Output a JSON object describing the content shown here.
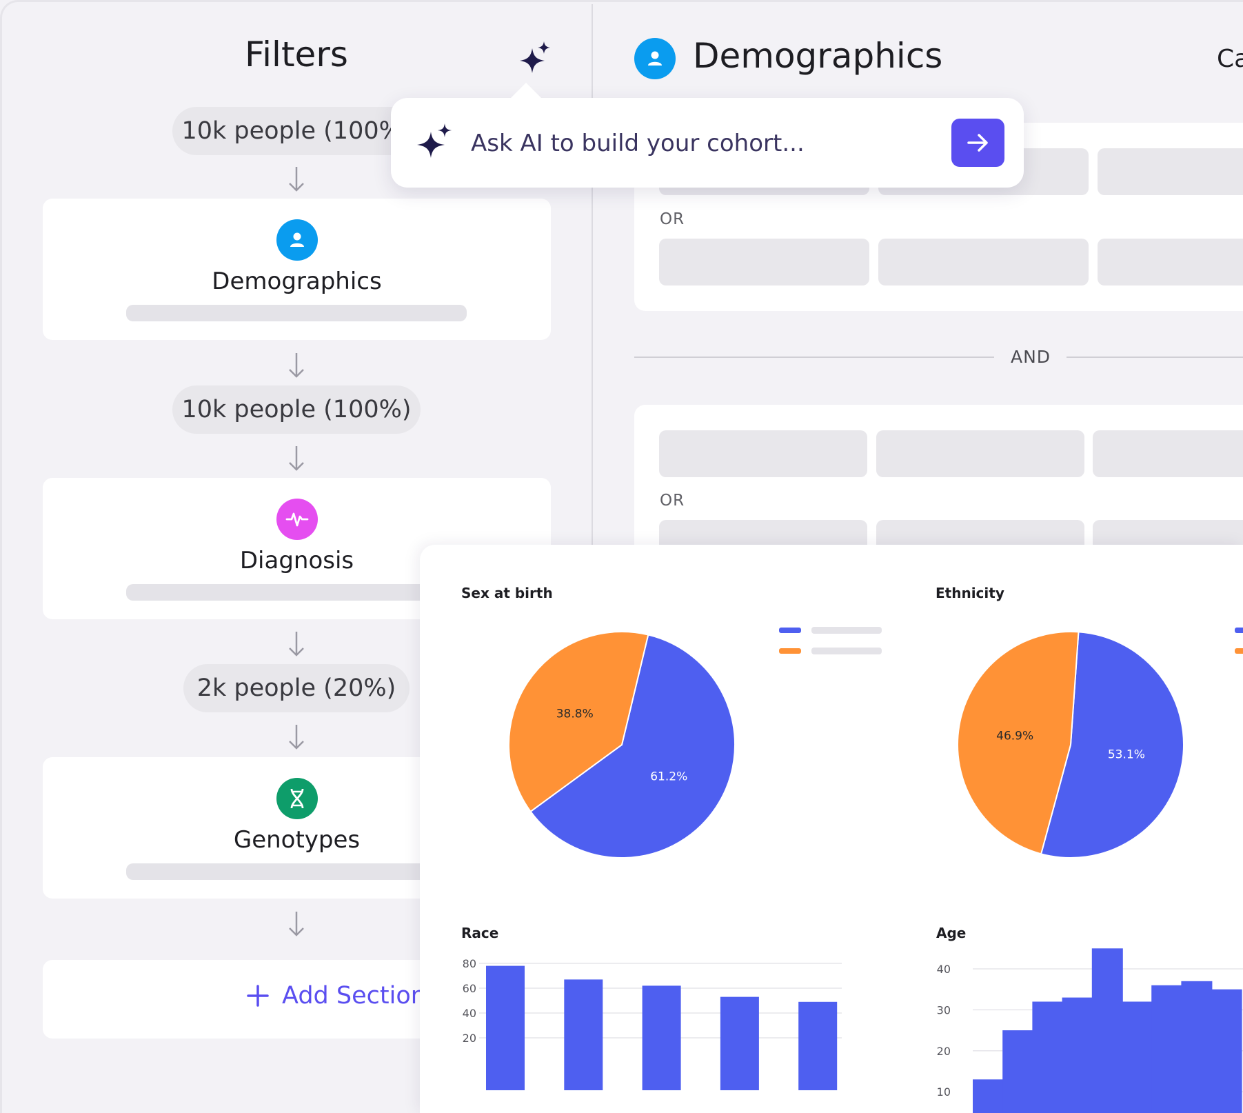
{
  "filters": {
    "title": "Filters",
    "flow": [
      {
        "type": "count",
        "label": "10k people (100%)"
      },
      {
        "type": "section",
        "label": "Demographics",
        "icon": "person-icon",
        "color": "#0a9cef"
      },
      {
        "type": "count",
        "label": "10k people (100%)"
      },
      {
        "type": "section",
        "label": "Diagnosis",
        "icon": "pulse-icon",
        "color": "#e54ef0"
      },
      {
        "type": "count",
        "label": "2k people (20%)"
      },
      {
        "type": "section",
        "label": "Genotypes",
        "icon": "dna-icon",
        "color": "#0e9d6a"
      }
    ],
    "add_section_label": "Add Section"
  },
  "ai_prompt": {
    "placeholder": "Ask AI to build your cohort..."
  },
  "detail": {
    "title": "Demographics",
    "cut_off_label": "Ca",
    "or_label": "OR",
    "and_label": "AND"
  },
  "colors": {
    "accent": "#5a4ef0",
    "chart_blue": "#4e5ff0",
    "chart_orange": "#ff9236"
  },
  "chart_data": [
    {
      "type": "pie",
      "title": "Sex at birth",
      "slices": [
        {
          "label": "61.2%",
          "value": 61.2,
          "color": "#4e5ff0"
        },
        {
          "label": "38.8%",
          "value": 38.8,
          "color": "#ff9236"
        }
      ]
    },
    {
      "type": "pie",
      "title": "Ethnicity",
      "slices": [
        {
          "label": "53.1%",
          "value": 53.1,
          "color": "#4e5ff0"
        },
        {
          "label": "46.9%",
          "value": 46.9,
          "color": "#ff9236"
        }
      ]
    },
    {
      "type": "bar",
      "title": "Race",
      "yticks": [
        20,
        40,
        60,
        80
      ],
      "ylim": [
        0,
        80
      ],
      "values": [
        78,
        67,
        62,
        53,
        49
      ],
      "grid": true
    },
    {
      "type": "bar",
      "title": "Age",
      "yticks": [
        10,
        20,
        30,
        40
      ],
      "ylim": [
        0,
        40
      ],
      "values": [
        13,
        25,
        32,
        33,
        45,
        32,
        36,
        37,
        35
      ],
      "grid": true
    }
  ]
}
